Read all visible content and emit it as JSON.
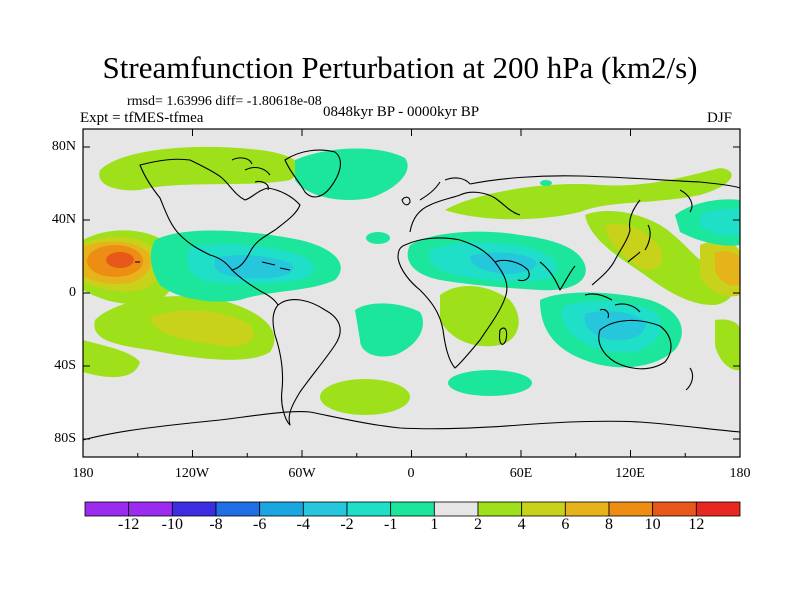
{
  "title": "Streamfunction Perturbation at 200 hPa (km2/s)",
  "stats_line": "rmsd= 1.63996 diff= -1.80618e-08",
  "experiment_label": "Expt = tfMES-tfmea",
  "period_label": "0848kyr BP - 0000kyr BP",
  "season_label": "DJF",
  "lat_ticks": [
    "80N",
    "40N",
    "0",
    "40S",
    "80S"
  ],
  "lon_ticks": [
    "180",
    "120W",
    "60W",
    "0",
    "60E",
    "120E",
    "180"
  ],
  "colorbar": {
    "labels": [
      "-12",
      "-10",
      "-8",
      "-6",
      "-4",
      "-2",
      "-1",
      "1",
      "2",
      "4",
      "6",
      "8",
      "10",
      "12"
    ],
    "colors": [
      "#9a2bef",
      "#3c2de0",
      "#1f6ee6",
      "#1aa6e0",
      "#26c6dc",
      "#1fdfc8",
      "#1ce69c",
      "#e6e6e6",
      "#9ee11a",
      "#c8d21a",
      "#e6b41a",
      "#ee8d14",
      "#e8581a",
      "#e82820"
    ]
  },
  "chart_data": {
    "type": "heatmap",
    "title": "Streamfunction Perturbation at 200 hPa (km2/s)",
    "variable": "Streamfunction perturbation",
    "units": "km2/s",
    "level": "200 hPa",
    "season": "DJF",
    "xlabel": "",
    "ylabel": "",
    "xlim": [
      -180,
      180
    ],
    "ylim": [
      -90,
      90
    ],
    "contour_levels": [
      -12,
      -10,
      -8,
      -6,
      -4,
      -2,
      -1,
      1,
      2,
      4,
      6,
      8,
      10,
      12
    ],
    "features": [
      {
        "name": "central-pacific-high",
        "lon": -165,
        "lat": 20,
        "value": 9,
        "sign": "positive"
      },
      {
        "name": "west-pacific-high",
        "lon": 170,
        "lat": 18,
        "value": 4,
        "sign": "positive"
      },
      {
        "name": "northeast-asia-high",
        "lon": 135,
        "lat": 35,
        "value": 4,
        "sign": "positive"
      },
      {
        "name": "south-pacific-high",
        "lon": -130,
        "lat": -20,
        "value": 4,
        "sign": "positive"
      },
      {
        "name": "north-pacific-ridge",
        "lon": -160,
        "lat": 60,
        "value": 1.5,
        "sign": "positive"
      },
      {
        "name": "caribbean-low",
        "lon": -100,
        "lat": 15,
        "value": -4,
        "sign": "negative"
      },
      {
        "name": "north-atlantic-low",
        "lon": -50,
        "lat": 68,
        "value": -2,
        "sign": "negative"
      },
      {
        "name": "africa-asia-low",
        "lon": 50,
        "lat": 20,
        "value": -4,
        "sign": "negative"
      },
      {
        "name": "australia-low",
        "lon": 110,
        "lat": -15,
        "value": -4,
        "sign": "negative"
      },
      {
        "name": "north-pacific-low",
        "lon": 165,
        "lat": 45,
        "value": -2,
        "sign": "negative"
      },
      {
        "name": "south-atlantic-low",
        "lon": -20,
        "lat": -15,
        "value": -2,
        "sign": "negative"
      },
      {
        "name": "south-indian-low",
        "lon": 45,
        "lat": -50,
        "value": -2,
        "sign": "negative"
      },
      {
        "name": "south-atlantic-high",
        "lon": -30,
        "lat": -55,
        "value": 1.5,
        "sign": "positive"
      },
      {
        "name": "east-africa-high",
        "lon": 60,
        "lat": -10,
        "value": 1.5,
        "sign": "positive"
      },
      {
        "name": "central-asia-high",
        "lon": 60,
        "lat": 45,
        "value": 1.5,
        "sign": "positive"
      }
    ]
  }
}
